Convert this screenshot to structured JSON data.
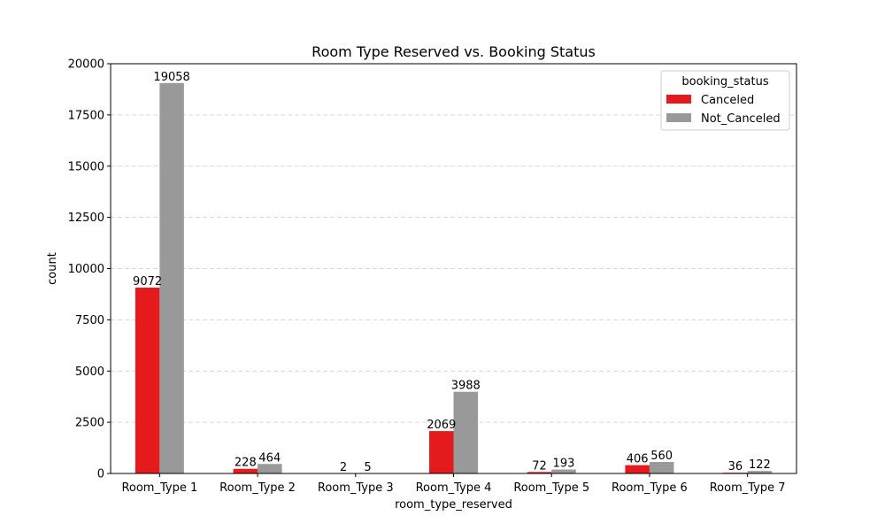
{
  "chart_data": {
    "type": "bar",
    "title": "Room Type Reserved vs. Booking Status",
    "xlabel": "room_type_reserved",
    "ylabel": "count",
    "categories": [
      "Room_Type 1",
      "Room_Type 2",
      "Room_Type 3",
      "Room_Type 4",
      "Room_Type 5",
      "Room_Type 6",
      "Room_Type 7"
    ],
    "series": [
      {
        "name": "Canceled",
        "values": [
          9072,
          228,
          2,
          2069,
          72,
          406,
          36
        ],
        "color": "#e41a1c"
      },
      {
        "name": "Not_Canceled",
        "values": [
          19058,
          464,
          5,
          3988,
          193,
          560,
          122
        ],
        "color": "#999999"
      }
    ],
    "ylim": [
      0,
      20000
    ],
    "yticks": [
      0,
      2500,
      5000,
      7500,
      10000,
      12500,
      15000,
      17500,
      20000
    ],
    "grid": true,
    "legend": {
      "title": "booking_status",
      "placement": "top-right"
    },
    "data_labels": true
  }
}
